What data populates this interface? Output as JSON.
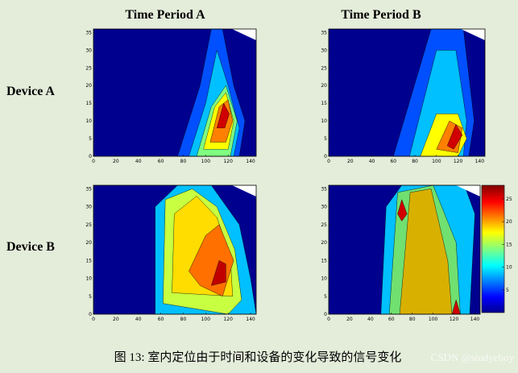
{
  "columns": [
    "Time Period A",
    "Time Period B"
  ],
  "rows": [
    "Device A",
    "Device B"
  ],
  "panels": {
    "xlim": [
      0,
      145
    ],
    "ylim": [
      0,
      36
    ],
    "xticks": [
      0,
      20,
      40,
      60,
      80,
      100,
      120,
      140
    ],
    "yticks": [
      0,
      5,
      10,
      15,
      20,
      25,
      30,
      35
    ]
  },
  "colorbar": {
    "range": [
      0,
      28
    ],
    "ticks": [
      5,
      10,
      15,
      20,
      25
    ]
  },
  "caption": "图 13: 室内定位由于时间和设备的变化导致的信号变化",
  "watermark": "CSDN @studyeboy"
}
